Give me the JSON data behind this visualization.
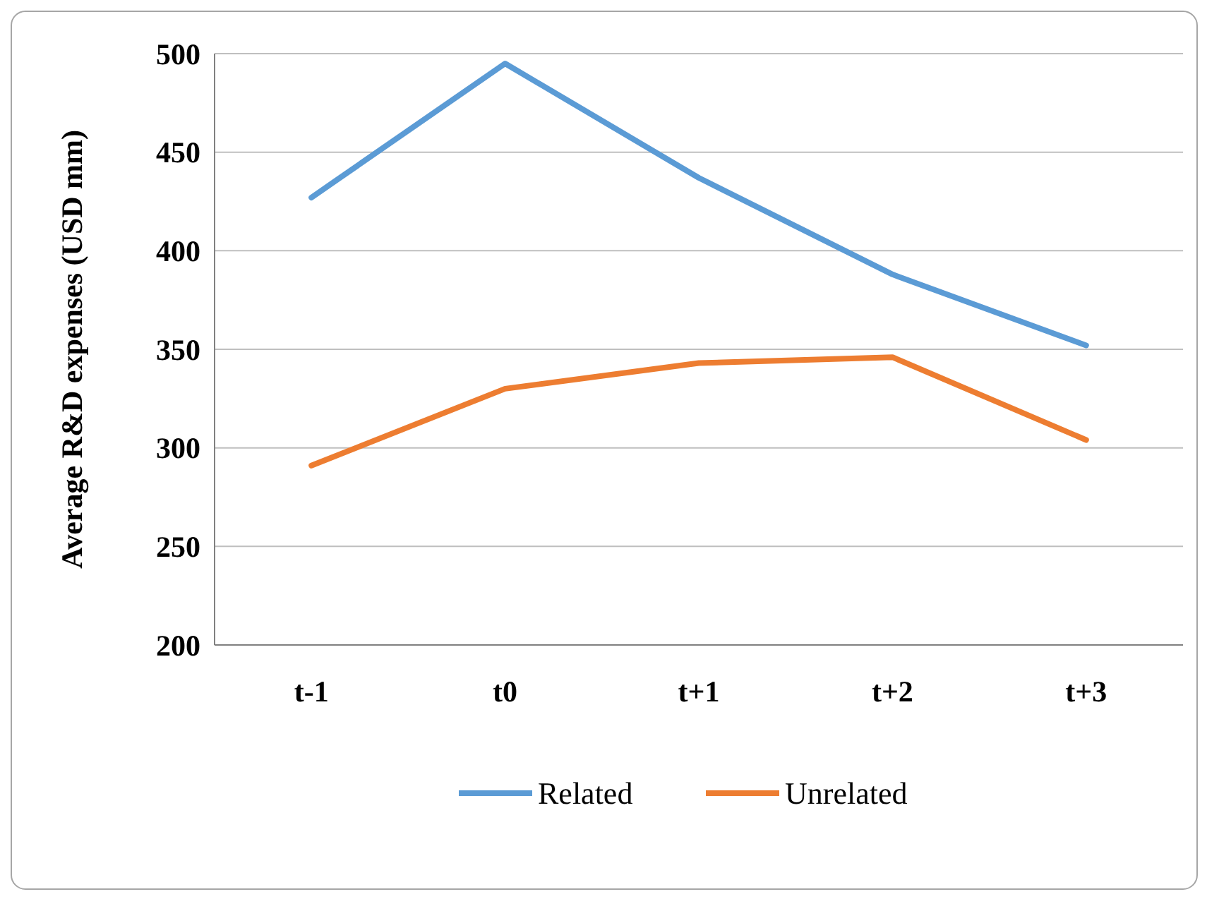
{
  "chart_data": {
    "type": "line",
    "ylabel": "Average R&D expenses (USD mm)",
    "categories": [
      "t-1",
      "t0",
      "t+1",
      "t+2",
      "t+3"
    ],
    "series": [
      {
        "name": "Related",
        "color": "#5b9bd5",
        "values": [
          427,
          495,
          437,
          388,
          352
        ]
      },
      {
        "name": "Unrelated",
        "color": "#ed7d31",
        "values": [
          291,
          330,
          343,
          346,
          304
        ]
      }
    ],
    "ylim": [
      200,
      500
    ],
    "yticks": [
      200,
      250,
      300,
      350,
      400,
      450,
      500
    ],
    "grid": "y",
    "legend": "bottom",
    "marker": "none",
    "line_style": "solid"
  }
}
